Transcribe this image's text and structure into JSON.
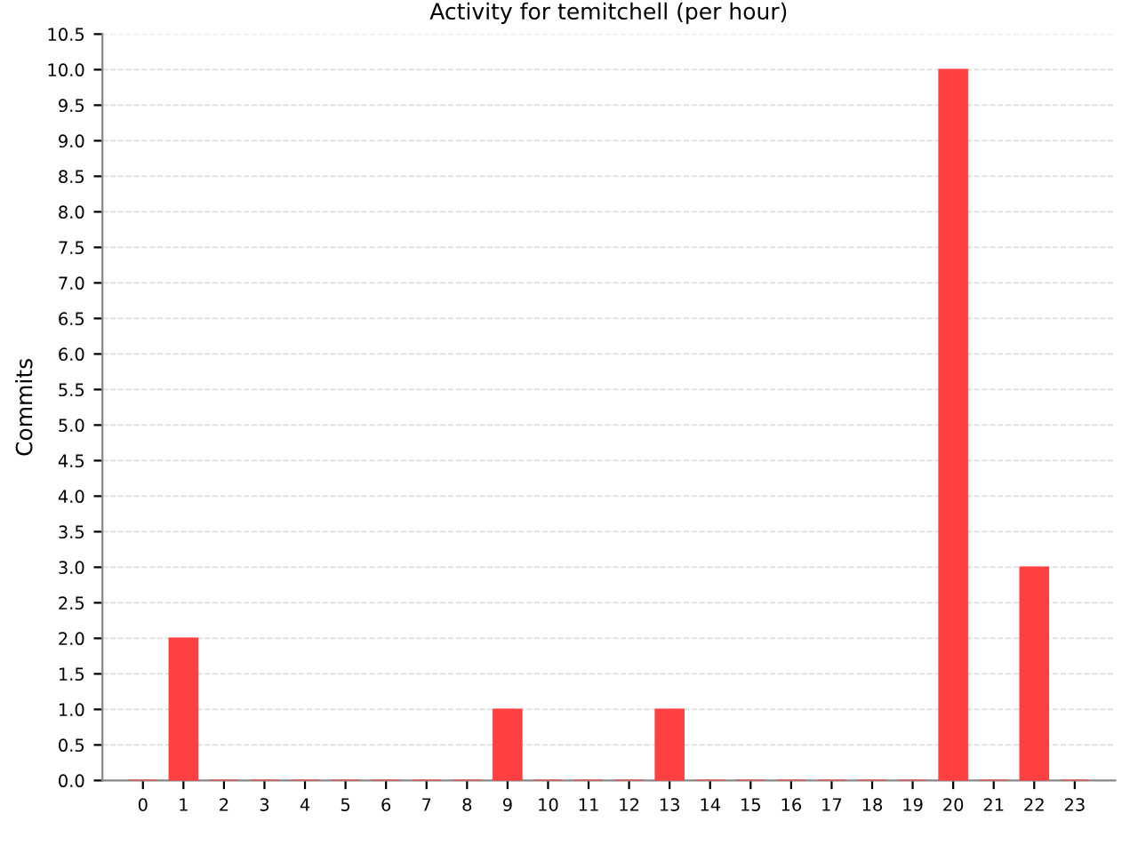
{
  "chart_data": {
    "type": "bar",
    "title": "Activity for temitchell (per hour)",
    "ylabel": "Commits",
    "categories": [
      "0",
      "1",
      "2",
      "3",
      "4",
      "5",
      "6",
      "7",
      "8",
      "9",
      "10",
      "11",
      "12",
      "13",
      "14",
      "15",
      "16",
      "17",
      "18",
      "19",
      "20",
      "21",
      "22",
      "23"
    ],
    "values": [
      0,
      2,
      0,
      0,
      0,
      0,
      0,
      0,
      0,
      1,
      0,
      0,
      0,
      1,
      0,
      0,
      0,
      0,
      0,
      0,
      10,
      0,
      3,
      0
    ],
    "color": "#ff4040",
    "ylim": [
      0,
      10.5
    ],
    "yticks": [
      {
        "value": 0,
        "label": "0.0"
      },
      {
        "value": 0.5,
        "label": "0.5"
      },
      {
        "value": 1,
        "label": "1.0"
      },
      {
        "value": 1.5,
        "label": "1.5"
      },
      {
        "value": 2,
        "label": "2.0"
      },
      {
        "value": 2.5,
        "label": "2.5"
      },
      {
        "value": 3,
        "label": "3.0"
      },
      {
        "value": 3.5,
        "label": "3.5"
      },
      {
        "value": 4,
        "label": "4.0"
      },
      {
        "value": 4.5,
        "label": "4.5"
      },
      {
        "value": 5,
        "label": "5.0"
      },
      {
        "value": 5.5,
        "label": "5.5"
      },
      {
        "value": 6,
        "label": "6.0"
      },
      {
        "value": 6.5,
        "label": "6.5"
      },
      {
        "value": 7,
        "label": "7.0"
      },
      {
        "value": 7.5,
        "label": "7.5"
      },
      {
        "value": 8,
        "label": "8.0"
      },
      {
        "value": 8.5,
        "label": "8.5"
      },
      {
        "value": 9,
        "label": "9.0"
      },
      {
        "value": 9.5,
        "label": "9.5"
      },
      {
        "value": 10,
        "label": "10.0"
      },
      {
        "value": 10.5,
        "label": "10.5"
      }
    ],
    "grid": "y"
  }
}
